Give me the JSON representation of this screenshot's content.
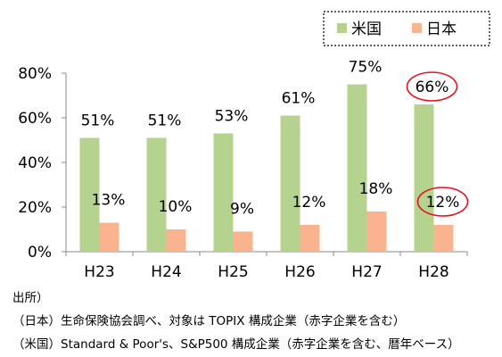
{
  "chart_data": {
    "type": "bar",
    "title": "",
    "xlabel": "",
    "ylabel": "",
    "categories": [
      "H23",
      "H24",
      "H25",
      "H26",
      "H27",
      "H28"
    ],
    "ylim": [
      0,
      80
    ],
    "yticks": [
      0,
      20,
      40,
      60,
      80
    ],
    "ytick_labels": [
      "0%",
      "20%",
      "40%",
      "60%",
      "80%"
    ],
    "grid": false,
    "legend_position": "top-right",
    "series": [
      {
        "name": "米国",
        "color": "#b6d28f",
        "values": [
          51,
          51,
          53,
          61,
          75,
          66
        ],
        "labels": [
          "51%",
          "51%",
          "53%",
          "61%",
          "75%",
          "66%"
        ]
      },
      {
        "name": "日本",
        "color": "#f9b48f",
        "values": [
          13,
          10,
          9,
          12,
          18,
          12
        ],
        "labels": [
          "13%",
          "10%",
          "9%",
          "12%",
          "18%",
          "12%"
        ]
      }
    ],
    "highlighted_labels": [
      {
        "series": 0,
        "category": "H28",
        "circle_color": "#e1141e"
      },
      {
        "series": 1,
        "category": "H28",
        "circle_color": "#e1141e"
      }
    ]
  },
  "source": {
    "heading": "出所）",
    "lines": [
      "（日本）生命保険協会調べ、対象は TOPIX 構成企業（赤字企業を含む）",
      "（米国）Standard & Poor's、S&P500 構成企業（赤字企業を含む、暦年ベース）"
    ]
  }
}
